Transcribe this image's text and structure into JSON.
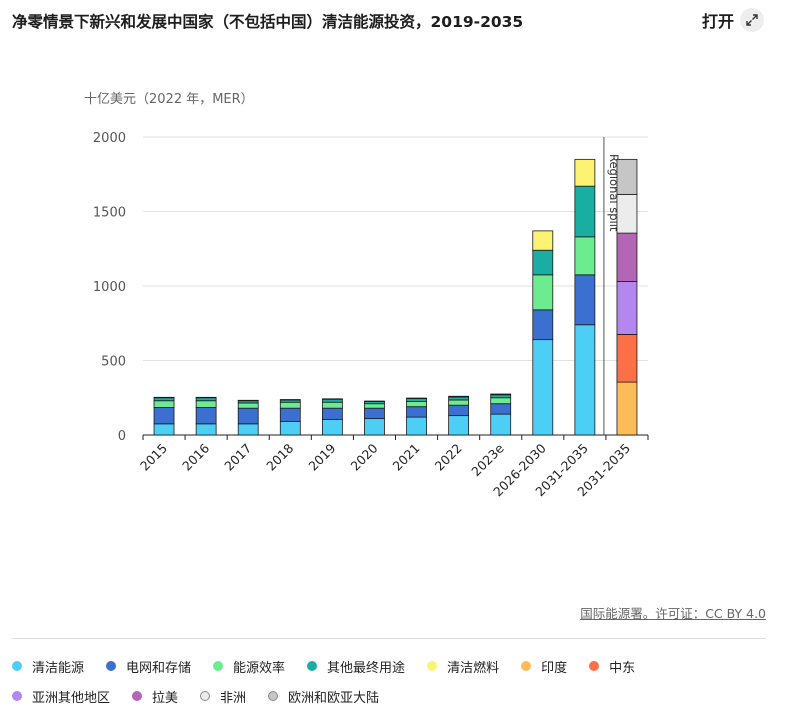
{
  "header": {
    "title": "净零情景下新兴和发展中国家（不包括中国）清洁能源投资，2019-2035",
    "open_label": "打开"
  },
  "unit_label": "十亿美元（2022 年，MER）",
  "source_label": "国际能源署。许可证：CC BY 4.0",
  "annotation": "Regional split",
  "colors": {
    "清洁能源": "#4dcff5",
    "电网和存储": "#3b6fd0",
    "能源效率": "#6ceb8f",
    "其他最终用途": "#1aaea2",
    "清洁燃料": "#fdf271",
    "印度": "#fdbb5a",
    "中东": "#fb7046",
    "亚洲其他地区": "#b486f0",
    "拉美": "#b565b5",
    "非洲": "#ececec",
    "欧洲和欧亚大陆": "#c6c6c6"
  },
  "legend": [
    {
      "label": "清洁能源",
      "color": "#4dcff5"
    },
    {
      "label": "电网和存储",
      "color": "#3b6fd0"
    },
    {
      "label": "能源效率",
      "color": "#6ceb8f"
    },
    {
      "label": "其他最终用途",
      "color": "#1aaea2"
    },
    {
      "label": "清洁燃料",
      "color": "#fdf271"
    },
    {
      "label": "印度",
      "color": "#fdbb5a"
    },
    {
      "label": "中东",
      "color": "#fb7046"
    },
    {
      "label": "亚洲其他地区",
      "color": "#b486f0"
    },
    {
      "label": "拉美",
      "color": "#b565b5"
    },
    {
      "label": "非洲",
      "color": "#ececec"
    },
    {
      "label": "欧洲和欧亚大陆",
      "color": "#c6c6c6"
    }
  ],
  "chart_data": {
    "type": "bar",
    "stacked": true,
    "title": "净零情景下新兴和发展中国家（不包括中国）清洁能源投资，2019-2035",
    "ylabel": "十亿美元（2022 年，MER）",
    "ylim": [
      0,
      2000
    ],
    "yticks": [
      0,
      500,
      1000,
      1500,
      2000
    ],
    "grid": true,
    "legend_position": "bottom",
    "categories": [
      "2015",
      "2016",
      "2017",
      "2018",
      "2019",
      "2020",
      "2021",
      "2022",
      "2023e",
      "2026-2030",
      "2031-2035",
      "2031-2035"
    ],
    "series": [
      {
        "name": "清洁能源",
        "values": [
          75,
          75,
          75,
          90,
          105,
          110,
          120,
          130,
          140,
          640,
          740,
          0
        ]
      },
      {
        "name": "电网和存储",
        "values": [
          110,
          110,
          105,
          90,
          75,
          70,
          70,
          70,
          70,
          200,
          335,
          0
        ]
      },
      {
        "name": "能源效率",
        "values": [
          45,
          45,
          35,
          40,
          40,
          30,
          35,
          35,
          40,
          235,
          255,
          0
        ]
      },
      {
        "name": "其他最终用途",
        "values": [
          20,
          20,
          15,
          15,
          20,
          15,
          20,
          20,
          20,
          165,
          340,
          0
        ]
      },
      {
        "name": "清洁燃料",
        "values": [
          3,
          3,
          3,
          3,
          3,
          3,
          3,
          5,
          5,
          130,
          180,
          0
        ]
      },
      {
        "name": "印度",
        "values": [
          0,
          0,
          0,
          0,
          0,
          0,
          0,
          0,
          0,
          0,
          0,
          355
        ]
      },
      {
        "name": "中东",
        "values": [
          0,
          0,
          0,
          0,
          0,
          0,
          0,
          0,
          0,
          0,
          0,
          320
        ]
      },
      {
        "name": "亚洲其他地区",
        "values": [
          0,
          0,
          0,
          0,
          0,
          0,
          0,
          0,
          0,
          0,
          0,
          355
        ]
      },
      {
        "name": "拉美",
        "values": [
          0,
          0,
          0,
          0,
          0,
          0,
          0,
          0,
          0,
          0,
          0,
          325
        ]
      },
      {
        "name": "非洲",
        "values": [
          0,
          0,
          0,
          0,
          0,
          0,
          0,
          0,
          0,
          0,
          0,
          260
        ]
      },
      {
        "name": "欧洲和欧亚大陆",
        "values": [
          0,
          0,
          0,
          0,
          0,
          0,
          0,
          0,
          0,
          0,
          0,
          235
        ]
      }
    ],
    "annotations": [
      {
        "text": "Regional split",
        "before_category_index": 11
      }
    ]
  }
}
